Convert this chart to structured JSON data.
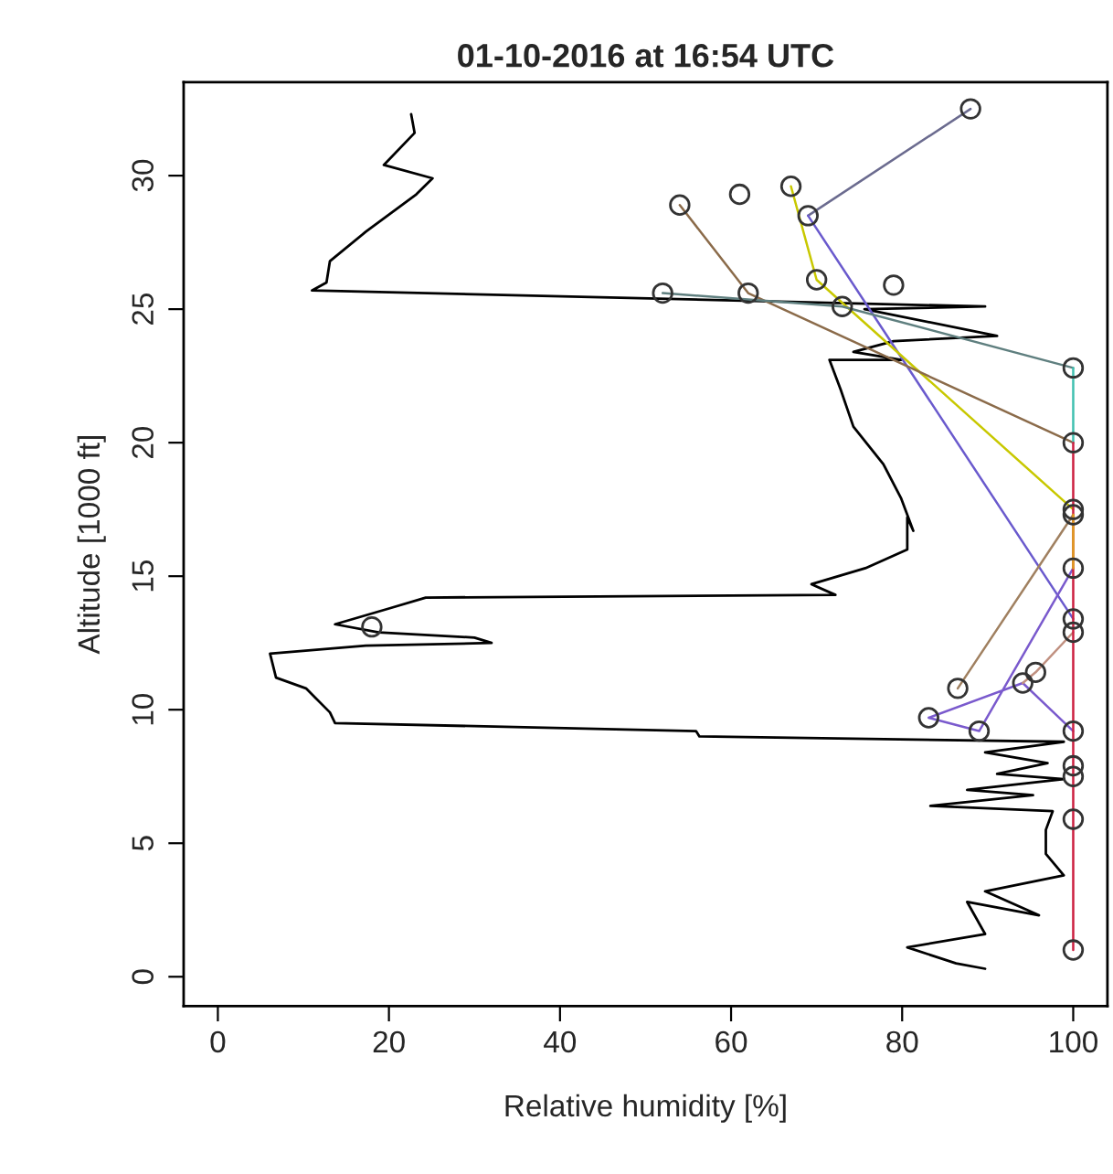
{
  "chart_data": {
    "type": "line",
    "title": "01-10-2016 at 16:54 UTC",
    "xlabel": "Relative humidity [%]",
    "ylabel": "Altitude [1000 ft]",
    "xlim": [
      -4,
      104
    ],
    "ylim": [
      -1.1,
      33.5
    ],
    "xticks": [
      0,
      20,
      40,
      60,
      80,
      100
    ],
    "yticks": [
      0,
      5,
      10,
      15,
      20,
      25,
      30
    ],
    "grid": false,
    "series": [
      {
        "color": "#000000",
        "x": [
          89.7,
          86.3,
          80.6,
          89.7,
          87.6,
          96,
          89.7,
          98.9,
          96.8,
          96.8,
          97.6,
          83.3,
          95.3,
          87.6,
          98.9,
          91.1,
          97,
          89.7,
          98.9,
          56.3,
          55.9,
          13.7,
          13.1,
          10.3,
          6.8,
          6.1,
          17.3,
          32,
          30,
          18.8,
          13.7,
          20.1,
          24.3,
          72.2,
          69.4,
          75.7,
          80.6,
          80.6,
          81.3,
          79.9,
          77.8,
          74.3,
          72.8,
          71.5,
          79.9,
          74.3,
          79,
          91.1,
          75.6,
          89.7,
          11,
          12.7,
          13.1,
          17.3,
          23.2,
          25.1,
          19.4,
          23,
          22.6
        ],
        "values": [
          0.3,
          0.5,
          1.1,
          1.6,
          2.8,
          2.3,
          3.2,
          3.8,
          4.6,
          5.5,
          6.2,
          6.4,
          6.8,
          7.0,
          7.4,
          7.6,
          8.0,
          8.4,
          8.8,
          9.0,
          9.2,
          9.5,
          9.9,
          10.8,
          11.2,
          12.1,
          12.4,
          12.5,
          12.7,
          12.9,
          13.2,
          13.8,
          14.2,
          14.3,
          14.7,
          15.3,
          16.0,
          17.2,
          16.7,
          17.9,
          19.2,
          20.6,
          22.0,
          23.1,
          23.1,
          23.4,
          23.8,
          24.0,
          25.0,
          25.1,
          25.7,
          26.0,
          26.8,
          27.9,
          29.3,
          29.9,
          30.4,
          31.6,
          32.3
        ]
      },
      {
        "type": "line",
        "color": "#6b6b8f",
        "x": [
          88,
          69
        ],
        "values": [
          32.5,
          28.5
        ]
      },
      {
        "type": "line",
        "color": "#6a5acd",
        "x": [
          69,
          100
        ],
        "values": [
          28.5,
          13.4
        ]
      },
      {
        "type": "line",
        "color": "#c8c800",
        "x": [
          67,
          70,
          100
        ],
        "values": [
          29.6,
          26.1,
          17.5
        ]
      },
      {
        "type": "line",
        "color": "#8b6b4a",
        "x": [
          54,
          62,
          100
        ],
        "values": [
          28.9,
          25.6,
          20.0
        ]
      },
      {
        "type": "line",
        "color": "#5f7f7f",
        "x": [
          52,
          73,
          100
        ],
        "values": [
          25.6,
          25.1,
          22.8
        ]
      },
      {
        "type": "line",
        "color": "#40c0b0",
        "x": [
          100,
          100
        ],
        "values": [
          22.8,
          20.0
        ]
      },
      {
        "type": "line",
        "color": "#a08060",
        "x": [
          100,
          86.5
        ],
        "values": [
          17.3,
          10.8
        ]
      },
      {
        "type": "line",
        "color": "#7a5acd",
        "x": [
          100,
          89,
          83.1,
          94.1,
          100
        ],
        "values": [
          15.3,
          9.2,
          9.7,
          11.0,
          9.2
        ]
      },
      {
        "type": "line",
        "color": "#c09080",
        "x": [
          100,
          95.6,
          94.1
        ],
        "values": [
          12.9,
          11.4,
          11.0
        ]
      },
      {
        "color": "#cc2040",
        "x": [
          100,
          100
        ],
        "values": [
          20.0,
          1.0
        ]
      },
      {
        "color": "#e0a020",
        "x": [
          100,
          100
        ],
        "values": [
          17.3,
          15.3
        ]
      },
      {
        "type": "scatter",
        "color": "#333333",
        "marker": "circle",
        "x": [
          88,
          69,
          54,
          61,
          67,
          70,
          79,
          52,
          62,
          73,
          100,
          100,
          100,
          100,
          100,
          100,
          100,
          95.6,
          94.1,
          86.5,
          83.1,
          89,
          100,
          100,
          100,
          100,
          100,
          18
        ],
        "values": [
          32.5,
          28.5,
          28.9,
          29.3,
          29.6,
          26.1,
          25.9,
          25.6,
          25.6,
          25.1,
          22.8,
          20.0,
          17.5,
          17.3,
          15.3,
          13.4,
          12.9,
          11.4,
          11.0,
          10.8,
          9.7,
          9.2,
          9.2,
          7.9,
          7.5,
          5.9,
          1.0,
          13.1
        ]
      }
    ]
  }
}
